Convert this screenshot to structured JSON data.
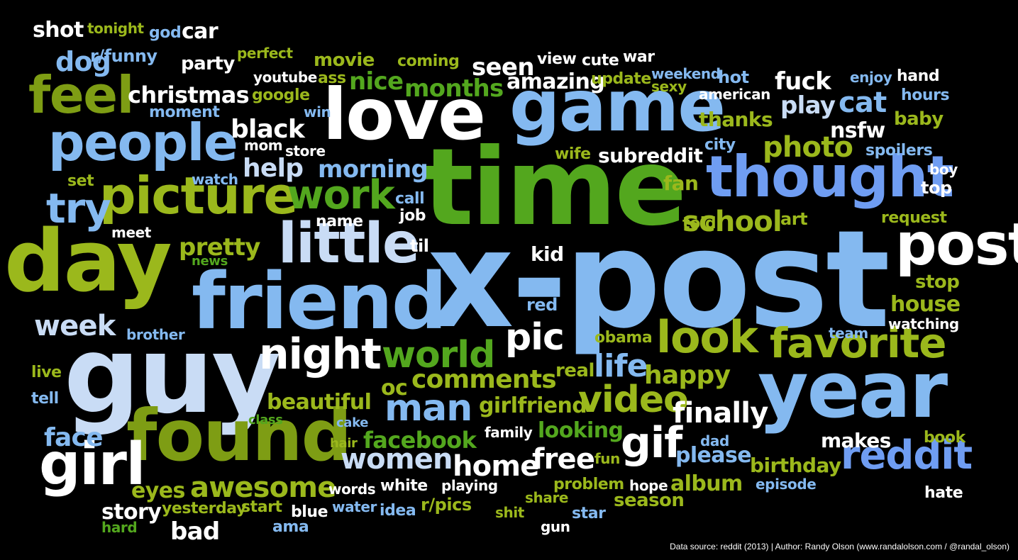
{
  "palette": {
    "background": "#000000",
    "white": "#ffffff",
    "pale_blue": "#c9dcf5",
    "light_blue": "#84b9f0",
    "mid_blue": "#6f9df2",
    "steel_blue": "#5f84d3",
    "lime": "#9bb81c",
    "green": "#53a71e",
    "olive": "#7e9d14",
    "yellow_green": "#a7bf1b"
  },
  "words": [
    {
      "text": "x-post",
      "color": "light_blue"
    },
    {
      "text": "time",
      "color": "green"
    },
    {
      "text": "guy",
      "color": "pale_blue"
    },
    {
      "text": "friend",
      "color": "light_blue"
    },
    {
      "text": "year",
      "color": "light_blue"
    },
    {
      "text": "game",
      "color": "light_blue"
    },
    {
      "text": "love",
      "color": "white"
    },
    {
      "text": "day",
      "color": "lime"
    },
    {
      "text": "found",
      "color": "olive"
    },
    {
      "text": "thought",
      "color": "mid_blue"
    },
    {
      "text": "picture",
      "color": "lime"
    },
    {
      "text": "little",
      "color": "pale_blue"
    },
    {
      "text": "post",
      "color": "white"
    },
    {
      "text": "people",
      "color": "light_blue"
    },
    {
      "text": "girl",
      "color": "white"
    },
    {
      "text": "feel",
      "color": "olive"
    },
    {
      "text": "night",
      "color": "white"
    },
    {
      "text": "favorite",
      "color": "lime"
    },
    {
      "text": "look",
      "color": "lime"
    },
    {
      "text": "gif",
      "color": "white"
    },
    {
      "text": "work",
      "color": "green"
    },
    {
      "text": "man",
      "color": "light_blue"
    },
    {
      "text": "world",
      "color": "green"
    },
    {
      "text": "reddit",
      "color": "mid_blue"
    },
    {
      "text": "pic",
      "color": "white"
    },
    {
      "text": "video",
      "color": "lime"
    },
    {
      "text": "week",
      "color": "pale_blue"
    },
    {
      "text": "try",
      "color": "light_blue"
    },
    {
      "text": "photo",
      "color": "lime"
    },
    {
      "text": "school",
      "color": "lime"
    },
    {
      "text": "finally",
      "color": "white"
    },
    {
      "text": "women",
      "color": "pale_blue"
    },
    {
      "text": "free",
      "color": "white"
    },
    {
      "text": "home",
      "color": "white"
    },
    {
      "text": "awesome",
      "color": "lime"
    },
    {
      "text": "comments",
      "color": "lime"
    },
    {
      "text": "dog",
      "color": "light_blue"
    },
    {
      "text": "black",
      "color": "white"
    },
    {
      "text": "help",
      "color": "pale_blue"
    },
    {
      "text": "morning",
      "color": "light_blue"
    },
    {
      "text": "life",
      "color": "light_blue"
    },
    {
      "text": "happy",
      "color": "lime"
    },
    {
      "text": "christmas",
      "color": "white"
    },
    {
      "text": "months",
      "color": "green"
    },
    {
      "text": "pretty",
      "color": "lime"
    },
    {
      "text": "cat",
      "color": "light_blue"
    },
    {
      "text": "play",
      "color": "pale_blue"
    },
    {
      "text": "nsfw",
      "color": "white"
    },
    {
      "text": "beautiful",
      "color": "lime"
    },
    {
      "text": "facebook",
      "color": "green"
    },
    {
      "text": "girlfriend",
      "color": "lime"
    },
    {
      "text": "face",
      "color": "light_blue"
    },
    {
      "text": "bad",
      "color": "white"
    },
    {
      "text": "story",
      "color": "white"
    },
    {
      "text": "eyes",
      "color": "lime"
    },
    {
      "text": "seen",
      "color": "white"
    },
    {
      "text": "nice",
      "color": "green"
    },
    {
      "text": "amazing",
      "color": "white"
    },
    {
      "text": "fuck",
      "color": "white"
    },
    {
      "text": "house",
      "color": "lime"
    },
    {
      "text": "album",
      "color": "lime"
    },
    {
      "text": "please",
      "color": "light_blue"
    },
    {
      "text": "looking",
      "color": "green"
    },
    {
      "text": "subreddit",
      "color": "white"
    },
    {
      "text": "car",
      "color": "white"
    },
    {
      "text": "shot",
      "color": "white"
    },
    {
      "text": "movie",
      "color": "lime"
    },
    {
      "text": "party",
      "color": "white"
    },
    {
      "text": "thanks",
      "color": "lime"
    },
    {
      "text": "kid",
      "color": "white"
    },
    {
      "text": "oc",
      "color": "lime"
    },
    {
      "text": "real",
      "color": "lime"
    },
    {
      "text": "fan",
      "color": "lime"
    },
    {
      "text": "birthday",
      "color": "lime"
    },
    {
      "text": "makes",
      "color": "white"
    },
    {
      "text": "season",
      "color": "lime"
    },
    {
      "text": "book",
      "color": "lime"
    },
    {
      "text": "white",
      "color": "white"
    },
    {
      "text": "baby",
      "color": "lime"
    },
    {
      "text": "spoilers",
      "color": "light_blue"
    },
    {
      "text": "top",
      "color": "white"
    },
    {
      "text": "stop",
      "color": "lime"
    },
    {
      "text": "request",
      "color": "lime"
    },
    {
      "text": "watching",
      "color": "white"
    },
    {
      "text": "city",
      "color": "light_blue"
    },
    {
      "text": "hours",
      "color": "light_blue"
    },
    {
      "text": "hand",
      "color": "white"
    },
    {
      "text": "enjoy",
      "color": "light_blue"
    },
    {
      "text": "hot",
      "color": "light_blue"
    },
    {
      "text": "american",
      "color": "white"
    },
    {
      "text": "art",
      "color": "lime"
    },
    {
      "text": "told",
      "color": "lime"
    },
    {
      "text": "call",
      "color": "light_blue"
    },
    {
      "text": "job",
      "color": "white"
    },
    {
      "text": "name",
      "color": "white"
    },
    {
      "text": "til",
      "color": "white"
    },
    {
      "text": "red",
      "color": "light_blue"
    },
    {
      "text": "obama",
      "color": "lime"
    },
    {
      "text": "team",
      "color": "light_blue"
    },
    {
      "text": "view",
      "color": "white"
    },
    {
      "text": "cute",
      "color": "white"
    },
    {
      "text": "war",
      "color": "white"
    },
    {
      "text": "update",
      "color": "lime"
    },
    {
      "text": "weekend",
      "color": "light_blue"
    },
    {
      "text": "sexy",
      "color": "lime"
    },
    {
      "text": "coming",
      "color": "lime"
    },
    {
      "text": "perfect",
      "color": "lime"
    },
    {
      "text": "r/funny",
      "color": "light_blue"
    },
    {
      "text": "tonight",
      "color": "lime"
    },
    {
      "text": "god",
      "color": "light_blue"
    },
    {
      "text": "youtube",
      "color": "white"
    },
    {
      "text": "ass",
      "color": "lime"
    },
    {
      "text": "google",
      "color": "lime"
    },
    {
      "text": "moment",
      "color": "light_blue"
    },
    {
      "text": "win",
      "color": "light_blue"
    },
    {
      "text": "mom",
      "color": "white"
    },
    {
      "text": "store",
      "color": "white"
    },
    {
      "text": "wife",
      "color": "lime"
    },
    {
      "text": "watch",
      "color": "light_blue"
    },
    {
      "text": "set",
      "color": "lime"
    },
    {
      "text": "meet",
      "color": "white"
    },
    {
      "text": "news",
      "color": "green"
    },
    {
      "text": "brother",
      "color": "light_blue"
    },
    {
      "text": "live",
      "color": "lime"
    },
    {
      "text": "tell",
      "color": "light_blue"
    },
    {
      "text": "class",
      "color": "green"
    },
    {
      "text": "cake",
      "color": "light_blue"
    },
    {
      "text": "hair",
      "color": "lime"
    },
    {
      "text": "family",
      "color": "white"
    },
    {
      "text": "fun",
      "color": "lime"
    },
    {
      "text": "dad",
      "color": "light_blue"
    },
    {
      "text": "boy",
      "color": "white"
    },
    {
      "text": "problem",
      "color": "lime"
    },
    {
      "text": "hope",
      "color": "white"
    },
    {
      "text": "episode",
      "color": "light_blue"
    },
    {
      "text": "hate",
      "color": "white"
    },
    {
      "text": "words",
      "color": "white"
    },
    {
      "text": "playing",
      "color": "white"
    },
    {
      "text": "share",
      "color": "lime"
    },
    {
      "text": "shit",
      "color": "lime"
    },
    {
      "text": "star",
      "color": "light_blue"
    },
    {
      "text": "gun",
      "color": "white"
    },
    {
      "text": "r/pics",
      "color": "lime"
    },
    {
      "text": "idea",
      "color": "light_blue"
    },
    {
      "text": "water",
      "color": "light_blue"
    },
    {
      "text": "blue",
      "color": "white"
    },
    {
      "text": "start",
      "color": "lime"
    },
    {
      "text": "yesterday",
      "color": "lime"
    },
    {
      "text": "ama",
      "color": "light_blue"
    },
    {
      "text": "hard",
      "color": "green"
    }
  ],
  "credit": "Data source: reddit (2013) | Author: Randy Olson (www.randalolson.com / @randal_olson)"
}
